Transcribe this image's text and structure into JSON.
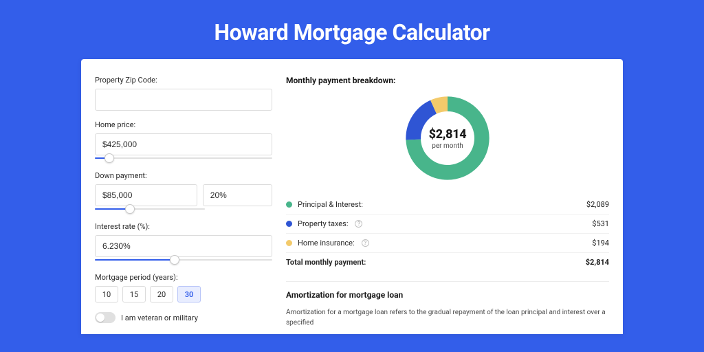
{
  "page": {
    "title": "Howard Mortgage Calculator",
    "background_color": "#335eea",
    "card_color": "#ffffff"
  },
  "form": {
    "zip": {
      "label": "Property Zip Code:",
      "value": ""
    },
    "home_price": {
      "label": "Home price:",
      "value": "$425,000",
      "slider_percent": 8
    },
    "down_payment": {
      "label": "Down payment:",
      "amount": "$85,000",
      "percent": "20%",
      "slider_percent": 32
    },
    "interest_rate": {
      "label": "Interest rate (%):",
      "value": "6.230%",
      "slider_percent": 45
    },
    "period": {
      "label": "Mortgage period (years):",
      "options": [
        "10",
        "15",
        "20",
        "30"
      ],
      "selected": "30"
    },
    "veteran": {
      "label": "I am veteran or military",
      "checked": false
    }
  },
  "breakdown": {
    "heading": "Monthly payment breakdown:",
    "center_amount": "$2,814",
    "center_sub": "per month",
    "items": [
      {
        "label": "Principal & Interest:",
        "value": "$2,089",
        "color": "#48b58b",
        "has_help": false,
        "share": 0.742
      },
      {
        "label": "Property taxes:",
        "value": "$531",
        "color": "#2f55d4",
        "has_help": true,
        "share": 0.189
      },
      {
        "label": "Home insurance:",
        "value": "$194",
        "color": "#f3ca6b",
        "has_help": true,
        "share": 0.069
      }
    ],
    "total": {
      "label": "Total monthly payment:",
      "value": "$2,814"
    },
    "donut": {
      "stroke_width": 20,
      "background_color": "#ffffff"
    }
  },
  "amortization": {
    "heading": "Amortization for mortgage loan",
    "text": "Amortization for a mortgage loan refers to the gradual repayment of the loan principal and interest over a specified"
  }
}
